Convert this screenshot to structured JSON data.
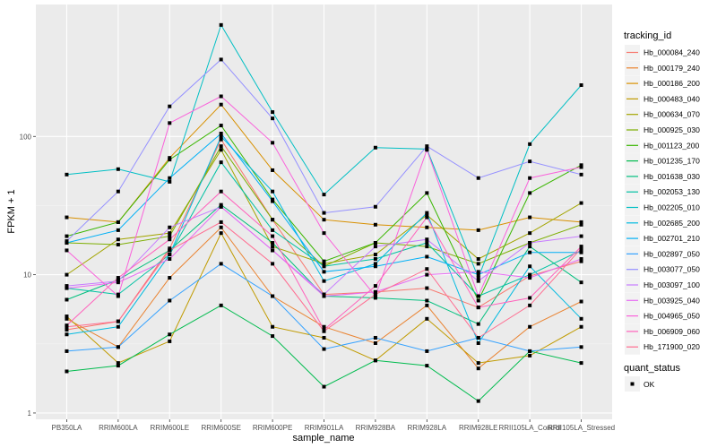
{
  "chart_data": {
    "type": "line",
    "title": "",
    "xlabel": "sample_name",
    "ylabel": "FPKM + 1",
    "y_scale": "log10",
    "ylim": [
      0.9,
      900
    ],
    "y_ticks": [
      1,
      10,
      100
    ],
    "y_tick_labels": [
      "1",
      "10",
      "100"
    ],
    "grid": true,
    "legend_position": "right",
    "categories": [
      "PB350LA",
      "RRIM600LA",
      "RRIM600LE",
      "RRIM600SE",
      "RRIM600PE",
      "RRIM901LA",
      "RRIM928BA",
      "RRIM928LA",
      "RRIM928LE",
      "RRII105LA_Control",
      "RRII105LA_Stressed"
    ],
    "legend": {
      "color_title": "tracking_id",
      "shape_title": "quant_status",
      "shape_entries": [
        {
          "label": "OK",
          "glyph": "square-point"
        }
      ]
    },
    "series": [
      {
        "name": "Hb_000084_240",
        "color": "#F8766D",
        "values": [
          4.0,
          4.6,
          15.5,
          95,
          25,
          7.2,
          7.5,
          8.0,
          5.8,
          9.8,
          12.5
        ]
      },
      {
        "name": "Hb_000179_240",
        "color": "#EA8331",
        "values": [
          4.8,
          3.0,
          9.5,
          22,
          7.0,
          4.2,
          3.2,
          6.0,
          2.1,
          4.2,
          6.4
        ]
      },
      {
        "name": "Hb_000186_200",
        "color": "#D89000",
        "values": [
          26,
          24,
          70,
          170,
          57,
          25,
          23,
          22,
          21,
          26,
          24
        ]
      },
      {
        "name": "Hb_000483_040",
        "color": "#C09B00",
        "values": [
          5.0,
          2.3,
          3.3,
          20,
          4.2,
          3.5,
          2.4,
          4.8,
          2.3,
          2.6,
          4.2
        ]
      },
      {
        "name": "Hb_000634_070",
        "color": "#A3A500",
        "values": [
          10,
          18,
          20,
          80,
          16,
          12,
          14,
          27,
          13,
          20,
          33
        ]
      },
      {
        "name": "Hb_000925_030",
        "color": "#7CAE00",
        "values": [
          17,
          16.5,
          19,
          85,
          25,
          11.5,
          17,
          16,
          12,
          17,
          23
        ]
      },
      {
        "name": "Hb_001123_200",
        "color": "#39B600",
        "values": [
          19,
          24,
          68,
          120,
          35,
          12.5,
          17,
          39,
          6.5,
          39,
          62
        ]
      },
      {
        "name": "Hb_001235_170",
        "color": "#00BB4E",
        "values": [
          2.0,
          2.2,
          3.7,
          6.0,
          3.6,
          1.55,
          2.4,
          2.2,
          1.22,
          2.8,
          2.3
        ]
      },
      {
        "name": "Hb_001638_030",
        "color": "#00BF7D",
        "values": [
          6.6,
          9.2,
          15,
          32,
          17,
          7.0,
          6.8,
          6.5,
          4.4,
          16,
          8.8
        ]
      },
      {
        "name": "Hb_002053_130",
        "color": "#00C1A3",
        "values": [
          8.0,
          7.2,
          14,
          65,
          21,
          11.5,
          13,
          17,
          7.0,
          10,
          15
        ]
      },
      {
        "name": "Hb_002205_010",
        "color": "#00BFC4",
        "values": [
          53,
          58,
          47,
          640,
          150,
          38,
          83,
          81,
          9.5,
          88,
          235
        ]
      },
      {
        "name": "Hb_002685_200",
        "color": "#00BAE0",
        "values": [
          3.7,
          4.2,
          14,
          100,
          40,
          9.0,
          12,
          28,
          3.2,
          11.5,
          4.8
        ]
      },
      {
        "name": "Hb_002701_210",
        "color": "#00B0F6",
        "values": [
          17,
          21,
          50,
          105,
          34,
          10.5,
          11.5,
          13.5,
          10,
          14.5,
          14.5
        ]
      },
      {
        "name": "Hb_002897_050",
        "color": "#35A2FF",
        "values": [
          2.8,
          3.0,
          6.5,
          12,
          7.0,
          2.9,
          3.5,
          2.8,
          3.5,
          2.8,
          3.0
        ]
      },
      {
        "name": "Hb_003077_050",
        "color": "#9590FF",
        "values": [
          17.5,
          40,
          165,
          360,
          135,
          28,
          31,
          85,
          50,
          66,
          53
        ]
      },
      {
        "name": "Hb_003097_100",
        "color": "#C77CFF",
        "values": [
          8.3,
          9.0,
          22,
          31,
          15,
          7.2,
          16,
          18,
          9.0,
          17,
          19
        ]
      },
      {
        "name": "Hb_003925_040",
        "color": "#E76BF3",
        "values": [
          8.0,
          8.8,
          13,
          31,
          15,
          7.0,
          7.5,
          10,
          10.5,
          9.5,
          13
        ]
      },
      {
        "name": "Hb_004965_050",
        "color": "#FA62DB",
        "values": [
          15,
          7.0,
          125,
          195,
          90,
          20,
          7.0,
          80,
          7.0,
          50,
          60
        ]
      },
      {
        "name": "Hb_006909_060",
        "color": "#FF62BC",
        "values": [
          4.3,
          9.5,
          18,
          40,
          19,
          4.0,
          8.3,
          26,
          5.8,
          6.8,
          16
        ]
      },
      {
        "name": "Hb_171900_020",
        "color": "#FF6C90",
        "values": [
          4.2,
          4.6,
          15,
          24,
          12,
          3.9,
          7.2,
          11,
          3.5,
          6.0,
          15.5
        ]
      }
    ]
  }
}
